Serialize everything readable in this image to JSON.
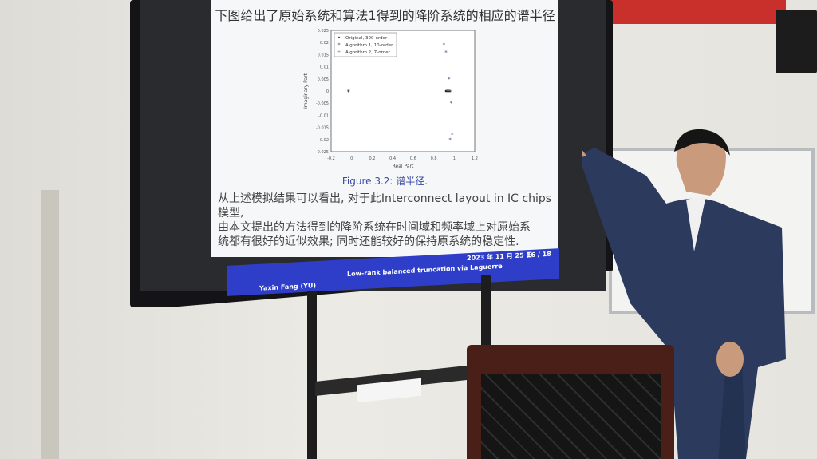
{
  "slide": {
    "title": "下图给出了原始系统和算法1得到的降阶系统的相应的谱半径",
    "figure_caption": "Figure 3.2: 谱半径.",
    "body_lines": [
      "从上述模拟结果可以看出, 对于此Interconnect layout in IC chips模型,",
      "由本文提出的方法得到的降阶系统在时间域和频率域上对原始系",
      "统都有很好的近似效果; 同时还能较好的保持原系统的稳定性."
    ],
    "footer": {
      "author": "Yaxin Fang (YU)",
      "talk_title": "Low-rank balanced truncation via Laguerre",
      "date": "2023 年 11 月 25 日",
      "page": "16 / 18"
    }
  },
  "chart_data": {
    "type": "scatter",
    "xlabel": "Real Part",
    "ylabel": "Imaginary Part",
    "xlim": [
      -0.2,
      1.2
    ],
    "ylim": [
      -0.025,
      0.025
    ],
    "xticks": [
      "-0.2",
      "0",
      "0.2",
      "0.4",
      "0.6",
      "0.8",
      "1",
      "1.2"
    ],
    "yticks": [
      "0.025",
      "0.02",
      "0.015",
      "0.01",
      "0.005",
      "0",
      "-0.005",
      "-0.01",
      "-0.015",
      "-0.02",
      "-0.025"
    ],
    "legend_position": "top-left",
    "series": [
      {
        "name": "Original, 300-order",
        "marker": "dot",
        "points": [
          [
            -0.03,
            0
          ],
          [
            0.92,
            0
          ],
          [
            0.93,
            0
          ],
          [
            0.94,
            0
          ],
          [
            0.95,
            0
          ],
          [
            0.96,
            0
          ]
        ]
      },
      {
        "name": "Algorithm 1, 10-order",
        "marker": "star",
        "points": [
          [
            -0.03,
            0
          ],
          [
            0.9,
            0.019
          ],
          [
            0.92,
            0.016
          ],
          [
            0.95,
            0.005
          ],
          [
            0.97,
            -0.005
          ],
          [
            0.98,
            -0.018
          ],
          [
            0.96,
            -0.02
          ],
          [
            0.93,
            0
          ],
          [
            0.95,
            0
          ]
        ]
      },
      {
        "name": "Algorithm 2, 7-order",
        "marker": "plus",
        "points": [
          [
            -0.03,
            0
          ],
          [
            0.94,
            0
          ],
          [
            0.96,
            0
          ]
        ]
      }
    ]
  }
}
